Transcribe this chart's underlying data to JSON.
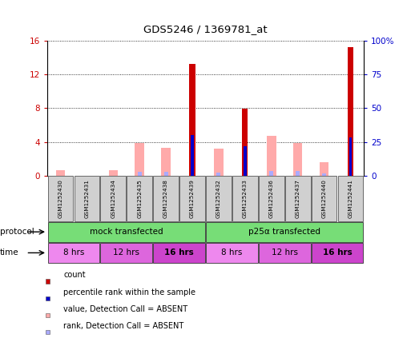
{
  "title": "GDS5246 / 1369781_at",
  "samples": [
    "GSM1252430",
    "GSM1252431",
    "GSM1252434",
    "GSM1252435",
    "GSM1252438",
    "GSM1252439",
    "GSM1252432",
    "GSM1252433",
    "GSM1252436",
    "GSM1252437",
    "GSM1252440",
    "GSM1252441"
  ],
  "count": [
    0,
    0,
    0,
    0,
    0,
    13.2,
    0,
    7.9,
    0,
    0,
    0,
    15.2
  ],
  "percentile_rank_scaled": [
    0,
    0,
    0,
    0,
    0,
    4.8,
    0,
    3.5,
    0,
    0,
    0,
    4.5
  ],
  "value_absent": [
    0.7,
    0,
    0.7,
    3.9,
    3.3,
    0,
    3.2,
    0,
    4.7,
    3.9,
    1.6,
    0
  ],
  "rank_absent": [
    0,
    0,
    0,
    0.5,
    0.5,
    0,
    0.4,
    0,
    0.6,
    0.6,
    0.3,
    0
  ],
  "ylim": [
    0,
    16
  ],
  "yticks": [
    0,
    4,
    8,
    12,
    16
  ],
  "ytick_labels": [
    "0",
    "4",
    "8",
    "12",
    "16"
  ],
  "y2ticks": [
    0,
    25,
    50,
    75,
    100
  ],
  "y2tick_labels": [
    "0",
    "25",
    "50",
    "75",
    "100%"
  ],
  "color_count": "#cc0000",
  "color_rank": "#0000cc",
  "color_value_absent": "#ffaaaa",
  "color_rank_absent": "#aaaaff",
  "protocol_groups": [
    {
      "label": "mock transfected",
      "start": 0,
      "end": 5,
      "color": "#77dd77"
    },
    {
      "label": "p25α transfected",
      "start": 6,
      "end": 11,
      "color": "#77dd77"
    }
  ],
  "time_groups": [
    {
      "label": "8 hrs",
      "start": 0,
      "end": 1,
      "color": "#ee88ee",
      "bold": false
    },
    {
      "label": "12 hrs",
      "start": 2,
      "end": 3,
      "color": "#dd66dd",
      "bold": false
    },
    {
      "label": "16 hrs",
      "start": 4,
      "end": 5,
      "color": "#cc44cc",
      "bold": true
    },
    {
      "label": "8 hrs",
      "start": 6,
      "end": 7,
      "color": "#ee88ee",
      "bold": false
    },
    {
      "label": "12 hrs",
      "start": 8,
      "end": 9,
      "color": "#dd66dd",
      "bold": false
    },
    {
      "label": "16 hrs",
      "start": 10,
      "end": 11,
      "color": "#cc44cc",
      "bold": true
    }
  ],
  "legend_items": [
    {
      "label": "count",
      "color": "#cc0000"
    },
    {
      "label": "percentile rank within the sample",
      "color": "#0000cc"
    },
    {
      "label": "value, Detection Call = ABSENT",
      "color": "#ffaaaa"
    },
    {
      "label": "rank, Detection Call = ABSENT",
      "color": "#aaaaff"
    }
  ],
  "bg_color": "#ffffff"
}
